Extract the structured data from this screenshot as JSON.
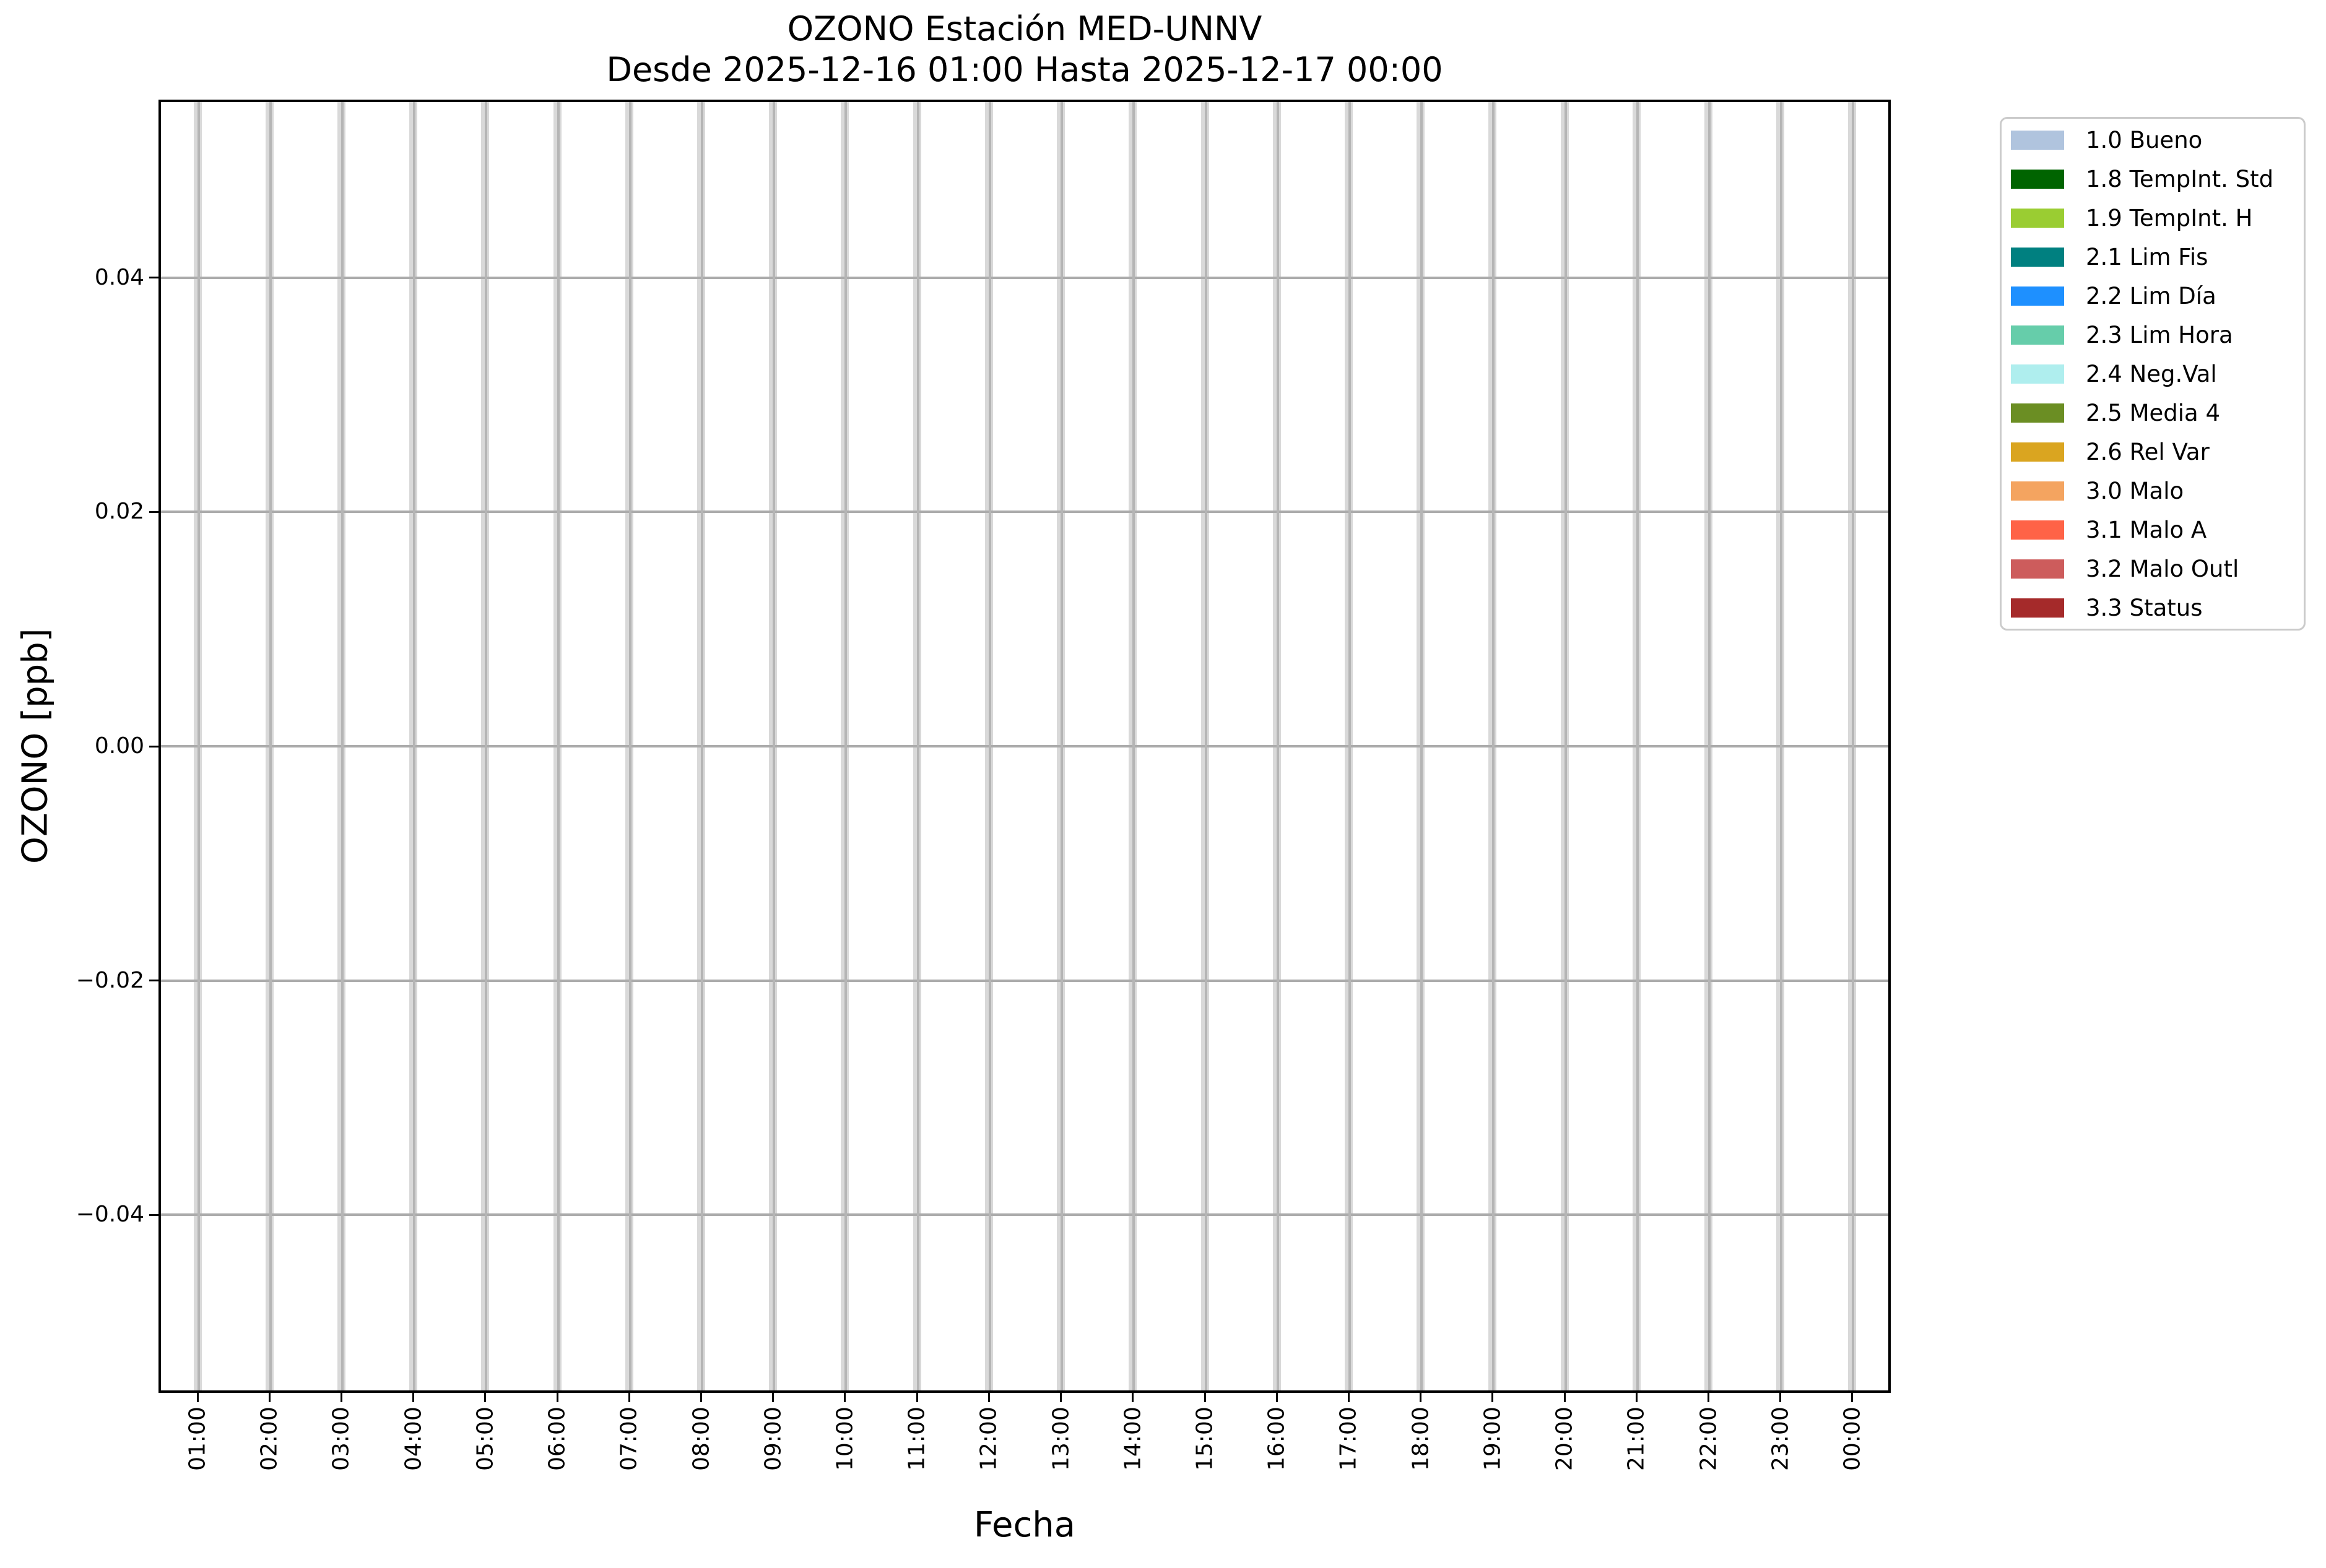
{
  "figure": {
    "title": "OZONO Estación MED-UNNV",
    "subtitle": "Desde 2025-12-16 01:00 Hasta 2025-12-17 00:00"
  },
  "axes": {
    "xlabel": "Fecha",
    "ylabel": "OZONO [ppb]",
    "ytick_labels": [
      "0.04",
      "0.02",
      "0.00",
      "−0.02",
      "−0.04"
    ],
    "xtick_labels": [
      "01:00",
      "02:00",
      "03:00",
      "04:00",
      "05:00",
      "06:00",
      "07:00",
      "08:00",
      "09:00",
      "10:00",
      "11:00",
      "12:00",
      "13:00",
      "14:00",
      "15:00",
      "16:00",
      "17:00",
      "18:00",
      "19:00",
      "20:00",
      "21:00",
      "22:00",
      "23:00",
      "00:00"
    ]
  },
  "colors": {
    "background": "#ffffff",
    "spine": "#000000",
    "band": "#d9d9d9",
    "vgrid": "#b5b5b5",
    "hgrid": "#ababab",
    "legend_border": "#cbcbcb",
    "text": "#000000"
  },
  "chart_data": {
    "type": "bar",
    "title": "OZONO Estación MED-UNNV",
    "subtitle": "Desde 2025-12-16 01:00 Hasta 2025-12-17 00:00",
    "xlabel": "Fecha",
    "ylabel": "OZONO [ppb]",
    "categories": [
      "01:00",
      "02:00",
      "03:00",
      "04:00",
      "05:00",
      "06:00",
      "07:00",
      "08:00",
      "09:00",
      "10:00",
      "11:00",
      "12:00",
      "13:00",
      "14:00",
      "15:00",
      "16:00",
      "17:00",
      "18:00",
      "19:00",
      "20:00",
      "21:00",
      "22:00",
      "23:00",
      "00:00"
    ],
    "series": [],
    "ylim": [
      -0.055,
      0.055
    ],
    "yticks": [
      0.04,
      0.02,
      0.0,
      -0.02,
      -0.04
    ],
    "grid": true,
    "legend_position": "outside upper right",
    "legend": [
      {
        "label": "1.0 Bueno",
        "color": "#b0c4de"
      },
      {
        "label": "1.8 TempInt. Std",
        "color": "#006400"
      },
      {
        "label": "1.9 TempInt. H",
        "color": "#9acd32"
      },
      {
        "label": "2.1 Lim Fis",
        "color": "#008080"
      },
      {
        "label": "2.2 Lim Día",
        "color": "#1e90ff"
      },
      {
        "label": "2.3 Lim Hora",
        "color": "#66cdaa"
      },
      {
        "label": "2.4 Neg.Val",
        "color": "#afeeee"
      },
      {
        "label": "2.5 Media 4",
        "color": "#6b8e23"
      },
      {
        "label": "2.6 Rel Var",
        "color": "#daa520"
      },
      {
        "label": "3.0 Malo",
        "color": "#f4a460"
      },
      {
        "label": "3.1 Malo A",
        "color": "#ff6347"
      },
      {
        "label": "3.2 Malo Outl",
        "color": "#cd5c5c"
      },
      {
        "label": "3.3 Status",
        "color": "#a52a2a"
      }
    ]
  }
}
